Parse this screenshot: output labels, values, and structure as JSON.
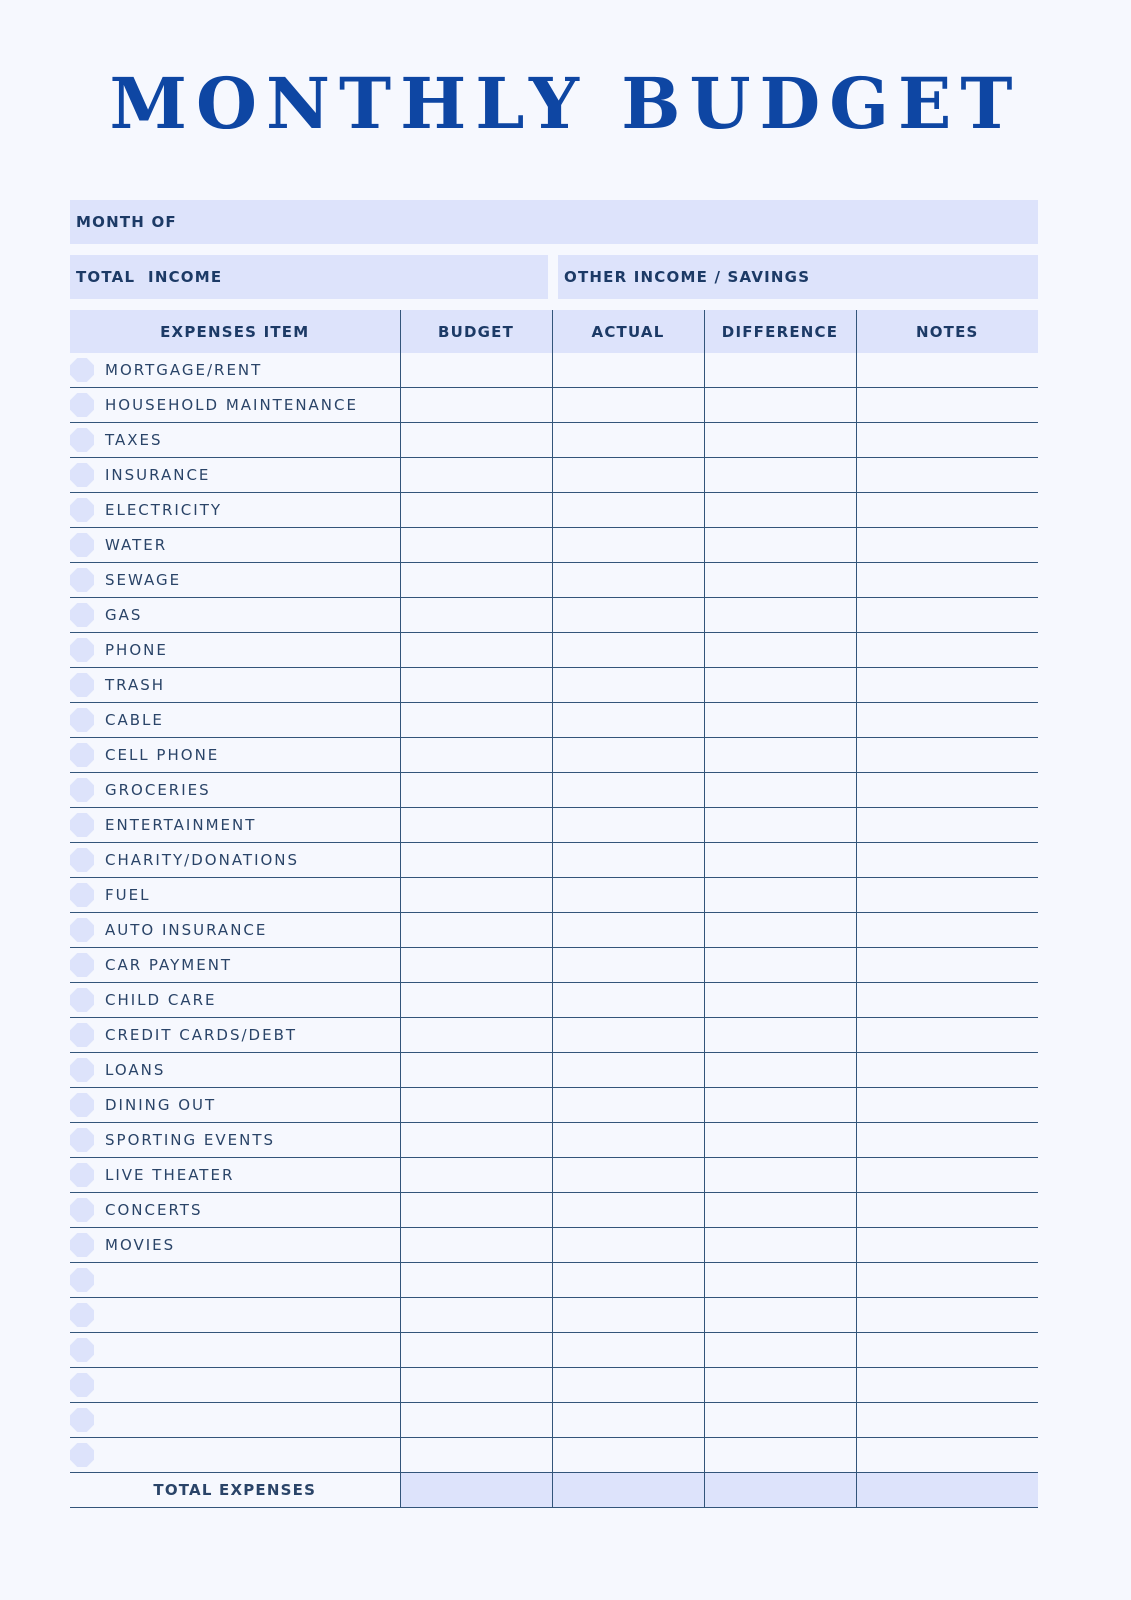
{
  "title": "MONTHLY BUDGET",
  "fields": {
    "month_of": "MONTH OF",
    "total_income": "TOTAL  INCOME",
    "other_income": "OTHER INCOME / SAVINGS"
  },
  "table": {
    "headers": [
      "EXPENSES ITEM",
      "BUDGET",
      "ACTUAL",
      "DIFFERENCE",
      "NOTES"
    ],
    "items": [
      "MORTGAGE/RENT",
      "HOUSEHOLD MAINTENANCE",
      "TAXES",
      "INSURANCE",
      "ELECTRICITY",
      "WATER",
      "SEWAGE",
      "GAS",
      "PHONE",
      "TRASH",
      "CABLE",
      "CELL PHONE",
      "GROCERIES",
      "ENTERTAINMENT",
      "CHARITY/DONATIONS",
      "FUEL",
      "AUTO INSURANCE",
      "CAR PAYMENT",
      "CHILD CARE",
      "CREDIT CARDS/DEBT",
      "LOANS",
      "DINING OUT",
      "SPORTING EVENTS",
      "LIVE THEATER",
      "CONCERTS",
      "MOVIES",
      "",
      "",
      "",
      "",
      "",
      ""
    ],
    "total_label": "TOTAL EXPENSES"
  },
  "colors": {
    "accent": "#0e46a3",
    "band": "#dde3fb",
    "text": "#1c3a66",
    "background": "#f6f8fe"
  }
}
